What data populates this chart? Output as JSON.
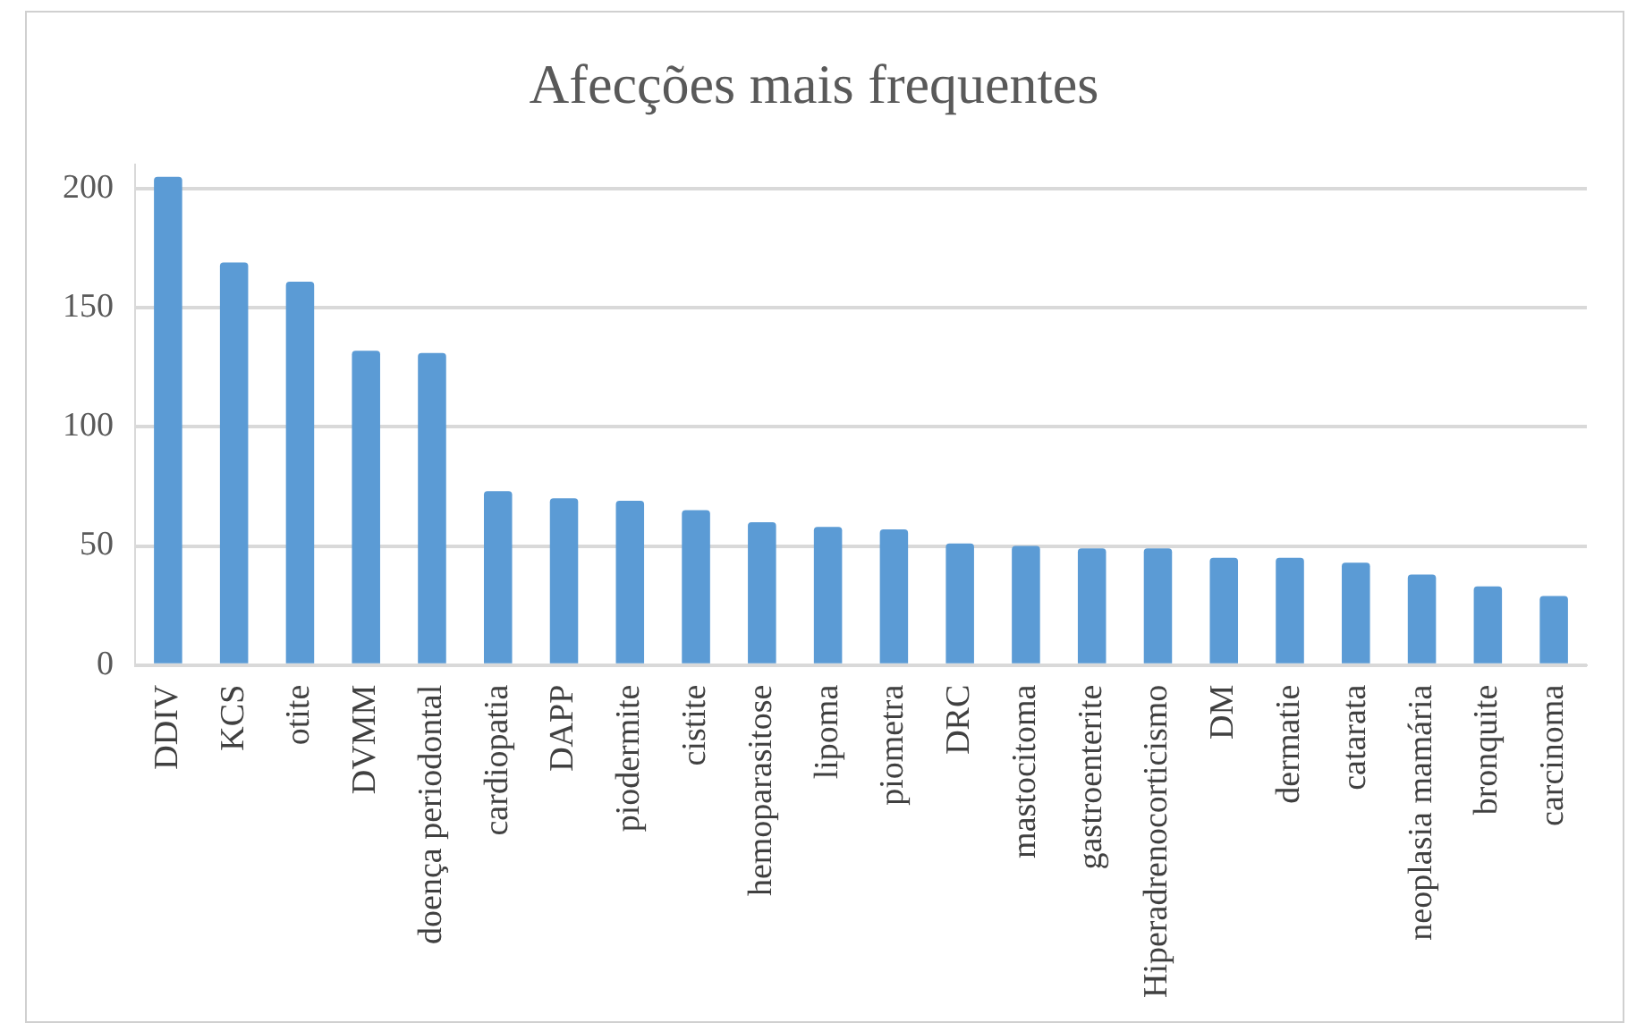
{
  "chart_data": {
    "type": "bar",
    "title": "Afecções mais frequentes",
    "categories": [
      "DDIV",
      "KCS",
      "otite",
      "DVMM",
      "doença periodontal",
      "cardiopatia",
      "DAPP",
      "piodermite",
      "cistite",
      "hemoparasitose",
      "lipoma",
      "piometra",
      "DRC",
      "mastocitoma",
      "gastroenterite",
      "Hiperadrenocorticismo",
      "DM",
      "dermatie",
      "catarata",
      "neoplasia mamária",
      "bronquite",
      "carcinoma"
    ],
    "values": [
      205,
      169,
      161,
      132,
      131,
      73,
      70,
      69,
      65,
      60,
      58,
      57,
      51,
      50,
      49,
      49,
      45,
      45,
      43,
      38,
      33,
      29
    ],
    "color": "#5b9bd5",
    "ylim": [
      0,
      210
    ],
    "yticks": [
      0,
      50,
      100,
      150,
      200
    ],
    "grid": "y"
  }
}
